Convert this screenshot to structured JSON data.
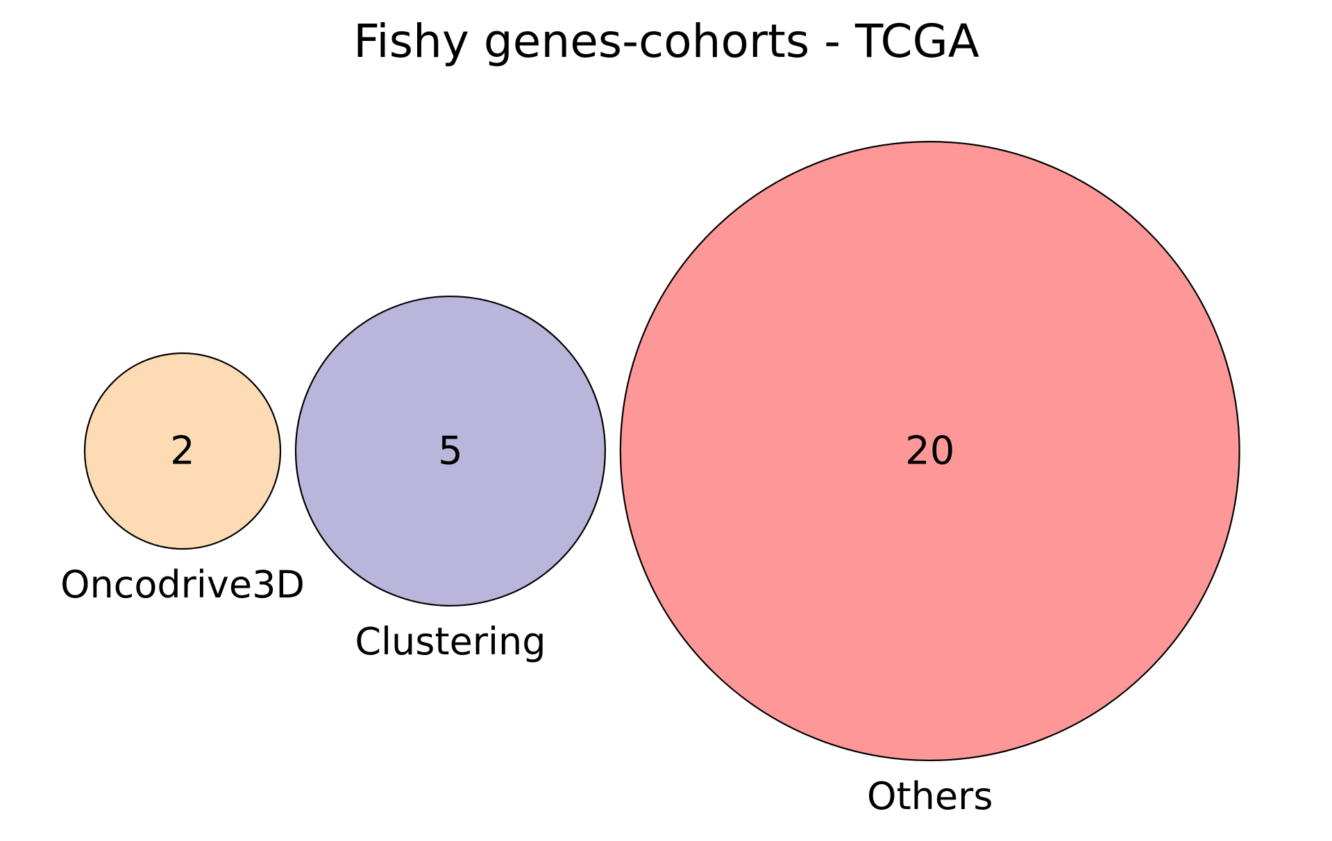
{
  "chart_data": {
    "type": "venn",
    "title": "Fishy genes-cohorts - TCGA",
    "sets": [
      {
        "name": "Oncodrive3D",
        "count": "2",
        "value": 2,
        "color": "#fddcb5"
      },
      {
        "name": "Clustering",
        "count": "5",
        "value": 5,
        "color": "#bab5da"
      },
      {
        "name": "Others",
        "count": "20",
        "value": 20,
        "color": "#fe9898"
      }
    ],
    "overlaps": [],
    "edge_color": "#000000"
  }
}
